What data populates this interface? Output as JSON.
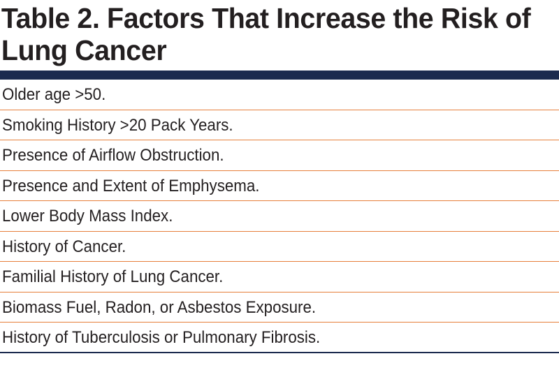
{
  "table": {
    "title": "Table 2. Factors That Increase the Risk of Lung Cancer",
    "rows": [
      "Older age >50.",
      "Smoking History >20 Pack Years.",
      "Presence of Airflow Obstruction.",
      "Presence and Extent of Emphysema.",
      "Lower Body Mass Index.",
      "History of Cancer.",
      "Familial History of Lung Cancer.",
      "Biomass Fuel, Radon, or Asbestos Exposure.",
      "History of Tuberculosis or Pulmonary Fibrosis."
    ]
  },
  "colors": {
    "header_rule": "#1b2a4e",
    "row_divider": "#e67e3a",
    "text": "#231f20"
  }
}
